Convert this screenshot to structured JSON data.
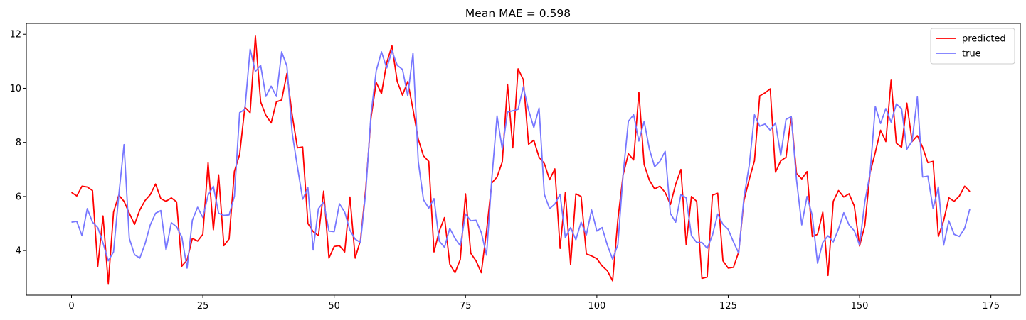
{
  "chart_data": {
    "type": "line",
    "title": "Mean MAE = 0.598",
    "xlabel": "",
    "ylabel": "",
    "xlim": [
      -8.6,
      180.6
    ],
    "ylim": [
      2.35,
      12.4
    ],
    "xticks": [
      0,
      25,
      50,
      75,
      100,
      125,
      150,
      175
    ],
    "yticks": [
      4,
      6,
      8,
      10,
      12
    ],
    "grid": false,
    "legend_position": "top-right",
    "series": [
      {
        "name": "predicted",
        "color": "#ff0000",
        "values": [
          6.15,
          6.02,
          6.38,
          6.35,
          6.22,
          3.42,
          5.28,
          2.78,
          5.42,
          6.05,
          5.82,
          5.38,
          4.97,
          5.5,
          5.85,
          6.07,
          6.46,
          5.92,
          5.82,
          5.95,
          5.8,
          3.42,
          3.65,
          4.45,
          4.35,
          4.6,
          7.25,
          4.77,
          6.8,
          4.18,
          4.43,
          6.93,
          7.55,
          9.3,
          9.1,
          11.93,
          9.5,
          9.0,
          8.72,
          9.5,
          9.57,
          10.55,
          9.02,
          7.8,
          7.83,
          5.0,
          4.7,
          4.55,
          6.2,
          3.72,
          4.15,
          4.18,
          3.95,
          5.98,
          3.72,
          4.38,
          6.28,
          8.9,
          10.22,
          9.8,
          10.95,
          11.57,
          10.25,
          9.75,
          10.25,
          9.22,
          8.12,
          7.5,
          7.3,
          3.95,
          4.72,
          5.22,
          3.5,
          3.18,
          3.67,
          6.1,
          3.9,
          3.62,
          3.18,
          4.72,
          6.5,
          6.72,
          7.28,
          10.15,
          7.8,
          10.72,
          10.32,
          7.93,
          8.08,
          7.45,
          7.22,
          6.62,
          7.02,
          4.08,
          6.15,
          3.48,
          6.1,
          6.0,
          3.88,
          3.8,
          3.7,
          3.43,
          3.25,
          2.88,
          5.15,
          6.8,
          7.58,
          7.35,
          9.85,
          7.18,
          6.6,
          6.28,
          6.38,
          6.15,
          5.7,
          6.45,
          7.0,
          4.22,
          6.0,
          5.82,
          2.97,
          3.02,
          6.05,
          6.12,
          3.62,
          3.35,
          3.38,
          3.95,
          5.85,
          6.63,
          7.32,
          9.72,
          9.83,
          9.98,
          6.9,
          7.32,
          7.45,
          8.95,
          6.85,
          6.65,
          6.92,
          4.52,
          4.6,
          5.42,
          3.08,
          5.82,
          6.22,
          5.98,
          6.1,
          5.65,
          4.17,
          4.92,
          6.88,
          7.63,
          8.45,
          8.03,
          10.3,
          7.97,
          7.82,
          9.45,
          8.03,
          8.25,
          7.82,
          7.25,
          7.3,
          4.52,
          5.1,
          5.95,
          5.82,
          6.02,
          6.38,
          6.18
        ]
      },
      {
        "name": "true",
        "color": "#7777ff",
        "values": [
          5.05,
          5.08,
          4.55,
          5.55,
          5.05,
          4.85,
          4.28,
          3.62,
          3.95,
          6.05,
          7.92,
          4.45,
          3.85,
          3.72,
          4.25,
          4.95,
          5.38,
          5.48,
          4.02,
          5.03,
          4.88,
          4.5,
          3.35,
          5.12,
          5.6,
          5.22,
          6.05,
          6.38,
          5.38,
          5.3,
          5.32,
          6.0,
          9.1,
          9.22,
          11.45,
          10.62,
          10.85,
          9.7,
          10.08,
          9.7,
          11.35,
          10.82,
          8.35,
          7.1,
          5.9,
          6.32,
          4.02,
          5.55,
          5.8,
          4.72,
          4.7,
          5.73,
          5.42,
          4.75,
          4.42,
          4.3,
          6.15,
          9.02,
          10.65,
          11.35,
          10.75,
          11.38,
          10.85,
          10.7,
          9.72,
          11.3,
          7.3,
          5.88,
          5.57,
          5.92,
          4.35,
          4.12,
          4.82,
          4.45,
          4.18,
          5.35,
          5.1,
          5.12,
          4.67,
          3.83,
          6.65,
          8.98,
          7.75,
          9.12,
          9.17,
          9.22,
          10.05,
          9.2,
          8.55,
          9.27,
          6.08,
          5.55,
          5.72,
          6.08,
          4.48,
          4.85,
          4.4,
          5.05,
          4.58,
          5.5,
          4.72,
          4.85,
          4.2,
          3.68,
          4.22,
          6.82,
          8.78,
          9.02,
          8.05,
          8.78,
          7.75,
          7.1,
          7.3,
          7.67,
          5.37,
          5.05,
          6.07,
          5.95,
          4.55,
          4.3,
          4.3,
          4.08,
          4.57,
          5.35,
          4.97,
          4.78,
          4.32,
          3.9,
          5.97,
          7.15,
          9.02,
          8.6,
          8.68,
          8.45,
          8.72,
          7.52,
          8.85,
          8.95,
          6.62,
          4.95,
          6.0,
          5.3,
          3.53,
          4.3,
          4.55,
          4.32,
          4.8,
          5.4,
          4.95,
          4.73,
          4.2,
          5.8,
          6.85,
          9.33,
          8.7,
          9.25,
          8.75,
          9.42,
          9.25,
          7.75,
          8.05,
          9.68,
          6.72,
          6.75,
          5.55,
          6.35,
          4.2,
          5.1,
          4.6,
          4.52,
          4.82,
          5.55
        ]
      }
    ]
  }
}
